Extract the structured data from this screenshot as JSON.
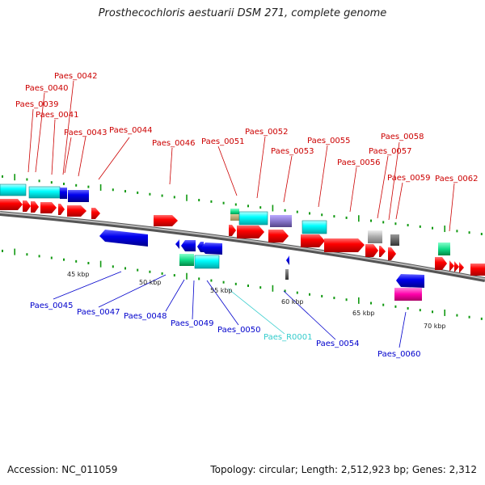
{
  "title": "Prosthecochloris aestuarii DSM 271, complete genome",
  "footer": {
    "accession": "Accession: NC_011059",
    "summary": "Topology: circular; Length: 2,512,923 bp; Genes: 2,312"
  },
  "scale_labels": [
    "45 kbp",
    "50 kbp",
    "55 kbp",
    "60 kbp",
    "65 kbp",
    "70 kbp"
  ],
  "forward_labels": [
    "Paes_0039",
    "Paes_0040",
    "Paes_0041",
    "Paes_0042",
    "Paes_0043",
    "Paes_0044",
    "Paes_0046",
    "Paes_0051",
    "Paes_0052",
    "Paes_0053",
    "Paes_0055",
    "Paes_0056",
    "Paes_0057",
    "Paes_0058",
    "Paes_0059",
    "Paes_0062"
  ],
  "reverse_labels": [
    "Paes_0045",
    "Paes_0047",
    "Paes_0048",
    "Paes_0049",
    "Paes_0050",
    "Paes_R0001",
    "Paes_0054",
    "Paes_0060"
  ],
  "colors": {
    "forward_label": "#cc0000",
    "reverse_label": "#0000cc",
    "rna_label": "#33cccc",
    "cds": "#ff0000",
    "cds_reverse": "#0000ee",
    "cog_cyan": "#00ffff",
    "cog_purple": "#8877cc",
    "cog_green": "#11dd88",
    "cog_magenta": "#ff00aa",
    "cog_grey": "#aaaaaa",
    "tick": "#119911",
    "backbone": "#888888"
  }
}
